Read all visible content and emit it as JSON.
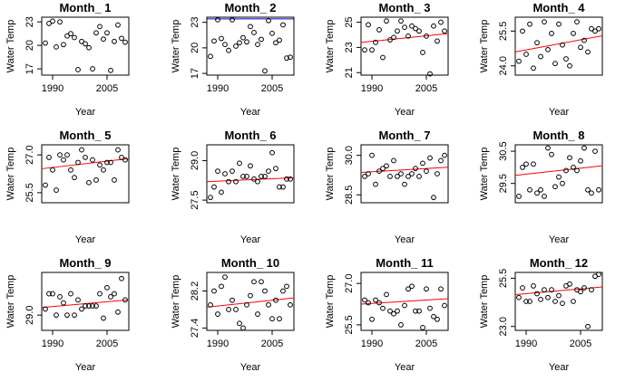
{
  "colors": {
    "points": "#000000",
    "trend": "#ff0000",
    "trend_month_2": "#0000cc",
    "frame": "#000000"
  },
  "chart_data": [
    {
      "type": "scatter",
      "title": "Month_ 1",
      "xlabel": "Year",
      "ylabel": "Water Temp",
      "xlim": [
        1987,
        2011
      ],
      "ylim": [
        16.2,
        23.6
      ],
      "xticks": [
        1990,
        2005
      ],
      "xtick_labels": [
        "1990",
        "2005"
      ],
      "yticks": [
        17,
        20,
        23
      ],
      "ytick_labels": [
        "17",
        "20",
        "23"
      ],
      "x": [
        1988,
        1989,
        1990,
        1991,
        1992,
        1993,
        1994,
        1995,
        1996,
        1997,
        1998,
        1999,
        2000,
        2001,
        2002,
        2003,
        2004,
        2005,
        2006,
        2007,
        2008,
        2009,
        2010
      ],
      "y": [
        20.3,
        22.8,
        23.1,
        19.8,
        23.0,
        20.1,
        21.2,
        21.5,
        21.0,
        16.9,
        20.5,
        20.2,
        19.7,
        17.0,
        21.6,
        22.4,
        20.8,
        21.6,
        16.8,
        20.5,
        22.6,
        20.9,
        20.4
      ],
      "trend": null
    },
    {
      "type": "scatter",
      "title": "Month_ 2",
      "xlabel": "Year",
      "ylabel": "Water Temp",
      "xlim": [
        1987,
        2011
      ],
      "ylim": [
        16.8,
        23.6
      ],
      "xticks": [
        1990,
        2005
      ],
      "xtick_labels": [
        "1990",
        "2005"
      ],
      "yticks": [
        17,
        20,
        23
      ],
      "ytick_labels": [
        "17",
        "20",
        "23"
      ],
      "x": [
        1988,
        1989,
        1990,
        1991,
        1992,
        1993,
        1994,
        1995,
        1996,
        1997,
        1998,
        1999,
        2000,
        2001,
        2002,
        2003,
        2004,
        2005,
        2006,
        2007,
        2008,
        2009,
        2010
      ],
      "y": [
        19.0,
        20.8,
        23.3,
        21.1,
        20.4,
        19.7,
        23.3,
        20.2,
        20.6,
        21.2,
        20.7,
        22.5,
        21.8,
        20.4,
        21.0,
        17.3,
        23.2,
        21.7,
        20.6,
        20.9,
        22.7,
        18.8,
        18.9
      ],
      "trend": [
        23.4,
        23.4
      ]
    },
    {
      "type": "scatter",
      "title": "Month_ 3",
      "xlabel": "Year",
      "ylabel": "Water Temp",
      "xlim": [
        1987,
        2011
      ],
      "ylim": [
        20.8,
        25.4
      ],
      "xticks": [
        1990,
        2005
      ],
      "xtick_labels": [
        "1990",
        "2005"
      ],
      "yticks": [
        21,
        23,
        25
      ],
      "ytick_labels": [
        "21",
        "23",
        "25"
      ],
      "x": [
        1988,
        1989,
        1990,
        1991,
        1992,
        1993,
        1994,
        1995,
        1996,
        1997,
        1998,
        1999,
        2000,
        2001,
        2002,
        2003,
        2004,
        2005,
        2006,
        2007,
        2008,
        2009,
        2010
      ],
      "y": [
        22.8,
        24.8,
        22.8,
        23.4,
        24.4,
        22.2,
        25.1,
        23.6,
        23.8,
        24.3,
        25.1,
        24.6,
        23.9,
        24.7,
        24.5,
        24.3,
        22.6,
        23.9,
        20.9,
        24.7,
        23.5,
        25.0,
        24.3
      ],
      "trend": [
        23.4,
        24.1
      ]
    },
    {
      "type": "scatter",
      "title": "Month_ 4",
      "xlabel": "Year",
      "ylabel": "Water Temp",
      "xlim": [
        1987,
        2011
      ],
      "ylim": [
        23.6,
        26.1
      ],
      "xticks": [],
      "xtick_labels": [],
      "yticks": [
        24.0,
        25.5
      ],
      "ytick_labels": [
        "24.0",
        "25.5"
      ],
      "x": [
        1988,
        1989,
        1990,
        1991,
        1992,
        1993,
        1994,
        1995,
        1996,
        1997,
        1998,
        1999,
        2000,
        2001,
        2002,
        2003,
        2004,
        2005,
        2006,
        2007,
        2008,
        2009,
        2010
      ],
      "y": [
        24.2,
        25.5,
        24.5,
        25.8,
        23.9,
        25.0,
        24.4,
        25.9,
        24.7,
        25.4,
        24.1,
        25.8,
        24.9,
        24.3,
        24.0,
        25.4,
        25.9,
        24.8,
        25.1,
        24.6,
        25.6,
        25.5,
        25.6
      ],
      "trend": [
        24.6,
        25.3
      ]
    },
    {
      "type": "scatter",
      "title": "Month_ 5",
      "xlabel": "Year",
      "ylabel": "Water Temp",
      "xlim": [
        1987,
        2011
      ],
      "ylim": [
        25.1,
        27.4
      ],
      "xticks": [],
      "xtick_labels": [],
      "yticks": [
        25.5,
        27.0
      ],
      "ytick_labels": [
        "25.5",
        "27.0"
      ],
      "x": [
        1988,
        1989,
        1990,
        1991,
        1992,
        1993,
        1994,
        1995,
        1996,
        1997,
        1998,
        1999,
        2000,
        2001,
        2002,
        2003,
        2004,
        2005,
        2006,
        2007,
        2008,
        2009,
        2010
      ],
      "y": [
        25.8,
        26.9,
        26.4,
        25.6,
        27.0,
        26.8,
        27.0,
        26.4,
        26.1,
        26.7,
        27.2,
        26.9,
        25.9,
        26.8,
        26.0,
        26.6,
        26.4,
        26.7,
        26.7,
        26.0,
        27.2,
        26.9,
        26.8
      ],
      "trend": [
        26.45,
        26.85
      ]
    },
    {
      "type": "scatter",
      "title": "Month_ 6",
      "xlabel": "Year",
      "ylabel": "Water Temp",
      "xlim": [
        1987,
        2011
      ],
      "ylim": [
        27.4,
        29.6
      ],
      "xticks": [],
      "xtick_labels": [],
      "yticks": [
        27.5,
        29.0
      ],
      "ytick_labels": [
        "27.5",
        "29.0"
      ],
      "x": [
        1988,
        1989,
        1990,
        1991,
        1992,
        1993,
        1994,
        1995,
        1996,
        1997,
        1998,
        1999,
        2000,
        2001,
        2002,
        2003,
        2004,
        2005,
        2006,
        2007,
        2008,
        2009,
        2010
      ],
      "y": [
        27.6,
        28.0,
        28.6,
        27.8,
        28.5,
        28.2,
        28.6,
        28.2,
        28.9,
        28.4,
        28.4,
        28.8,
        28.3,
        28.2,
        28.4,
        28.4,
        28.6,
        29.3,
        28.7,
        28.0,
        28.0,
        28.3,
        28.3
      ],
      "trend": [
        28.2,
        28.35
      ]
    },
    {
      "type": "scatter",
      "title": "Month_ 7",
      "xlabel": "Year",
      "ylabel": "Water Temp",
      "xlim": [
        1987,
        2011
      ],
      "ylim": [
        28.2,
        30.4
      ],
      "xticks": [],
      "xtick_labels": [],
      "yticks": [
        28.5,
        30.0
      ],
      "ytick_labels": [
        "28.5",
        "30.0"
      ],
      "x": [
        1988,
        1989,
        1990,
        1991,
        1992,
        1993,
        1994,
        1995,
        1996,
        1997,
        1998,
        1999,
        2000,
        2001,
        2002,
        2003,
        2004,
        2005,
        2006,
        2007,
        2008,
        2009,
        2010
      ],
      "y": [
        29.2,
        29.3,
        30.0,
        28.9,
        29.4,
        29.5,
        29.6,
        29.2,
        29.8,
        29.2,
        29.3,
        28.9,
        29.2,
        29.3,
        29.5,
        29.2,
        29.7,
        29.4,
        29.9,
        28.4,
        29.3,
        29.8,
        30.0
      ],
      "trend": [
        29.35,
        29.55
      ]
    },
    {
      "type": "scatter",
      "title": "Month_ 8",
      "xlabel": "Year",
      "ylabel": "Water Temp",
      "xlim": [
        1987,
        2011
      ],
      "ylim": [
        28.9,
        30.7
      ],
      "xticks": [],
      "xtick_labels": [],
      "yticks": [
        29.5,
        30.5
      ],
      "ytick_labels": [
        "29.5",
        "30.5"
      ],
      "x": [
        1988,
        1989,
        1990,
        1991,
        1992,
        1993,
        1994,
        1995,
        1996,
        1997,
        1998,
        1999,
        2000,
        2001,
        2002,
        2003,
        2004,
        2005,
        2006,
        2007,
        2008,
        2009,
        2010
      ],
      "y": [
        29.1,
        30.0,
        30.1,
        29.3,
        30.1,
        29.2,
        29.3,
        29.1,
        30.6,
        30.4,
        29.4,
        29.7,
        29.5,
        29.9,
        30.3,
        30.0,
        29.9,
        30.2,
        30.6,
        29.3,
        29.2,
        30.5,
        29.3
      ],
      "trend": [
        29.75,
        30.05
      ]
    },
    {
      "type": "scatter",
      "title": "Month_ 9",
      "xlabel": "Year",
      "ylabel": "Water Temp",
      "xlim": [
        1987,
        2011
      ],
      "ylim": [
        28.5,
        30.4
      ],
      "xticks": [
        1990,
        2005
      ],
      "xtick_labels": [
        "1990",
        "2005"
      ],
      "yticks": [
        29.0
      ],
      "ytick_labels": [
        "29.0"
      ],
      "x": [
        1988,
        1989,
        1990,
        1991,
        1992,
        1993,
        1994,
        1995,
        1996,
        1997,
        1998,
        1999,
        2000,
        2001,
        2002,
        2003,
        2004,
        2005,
        2006,
        2007,
        2008,
        2009,
        2010
      ],
      "y": [
        29.2,
        29.7,
        29.7,
        29.0,
        29.6,
        29.4,
        29.0,
        29.7,
        29.0,
        29.5,
        29.2,
        29.3,
        29.3,
        29.3,
        29.3,
        29.7,
        28.9,
        29.9,
        29.6,
        29.7,
        29.1,
        30.2,
        29.5
      ],
      "trend": [
        29.25,
        29.5
      ]
    },
    {
      "type": "scatter",
      "title": "Month_ 10",
      "xlabel": "Year",
      "ylabel": "Water Temp",
      "xlim": [
        1987,
        2011
      ],
      "ylim": [
        27.35,
        28.6
      ],
      "xticks": [
        1990,
        2005
      ],
      "xtick_labels": [
        "1990",
        "2005"
      ],
      "yticks": [
        27.4,
        28.2
      ],
      "ytick_labels": [
        "27.4",
        "28.2"
      ],
      "x": [
        1988,
        1989,
        1990,
        1991,
        1992,
        1993,
        1994,
        1995,
        1996,
        1997,
        1998,
        1999,
        2000,
        2001,
        2002,
        2003,
        2004,
        2005,
        2006,
        2007,
        2008,
        2009,
        2010
      ],
      "y": [
        27.9,
        28.2,
        27.7,
        28.3,
        28.5,
        27.8,
        28.0,
        27.8,
        27.5,
        27.4,
        27.9,
        28.1,
        28.4,
        27.7,
        28.4,
        28.2,
        27.9,
        27.6,
        28.0,
        27.6,
        28.2,
        28.3,
        27.9
      ],
      "trend": [
        27.85,
        28.05
      ]
    },
    {
      "type": "scatter",
      "title": "Month_ 11",
      "xlabel": "Year",
      "ylabel": "Water Temp",
      "xlim": [
        1987,
        2011
      ],
      "ylim": [
        25.3,
        27.4
      ],
      "xticks": [
        1990,
        2005
      ],
      "xtick_labels": [
        "1990",
        "2005"
      ],
      "yticks": [
        25.5,
        27.0
      ],
      "ytick_labels": [
        "25.5",
        "27.0"
      ],
      "x": [
        1988,
        1989,
        1990,
        1991,
        1992,
        1993,
        1994,
        1995,
        1996,
        1997,
        1998,
        1999,
        2000,
        2001,
        2002,
        2003,
        2004,
        2005,
        2006,
        2007,
        2008,
        2009,
        2010
      ],
      "y": [
        26.4,
        26.3,
        25.7,
        26.4,
        26.3,
        26.1,
        26.6,
        26.0,
        25.9,
        26.0,
        25.5,
        26.2,
        26.8,
        26.9,
        26.0,
        26.0,
        25.4,
        26.8,
        26.1,
        25.8,
        25.7,
        26.8,
        26.2
      ],
      "trend": [
        26.25,
        26.45
      ]
    },
    {
      "type": "scatter",
      "title": "Month_ 12",
      "xlabel": "Year",
      "ylabel": "Water Temp",
      "xlim": [
        1987,
        2011
      ],
      "ylim": [
        22.8,
        25.8
      ],
      "xticks": [
        1990,
        2005
      ],
      "xtick_labels": [
        "1990",
        "2005"
      ],
      "yticks": [
        23.0,
        25.5
      ],
      "ytick_labels": [
        "23.0",
        "25.5"
      ],
      "x": [
        1988,
        1989,
        1990,
        1991,
        1992,
        1993,
        1994,
        1995,
        1996,
        1997,
        1998,
        1999,
        2000,
        2001,
        2002,
        2003,
        2004,
        2005,
        2006,
        2007,
        2008,
        2009,
        2010
      ],
      "y": [
        24.5,
        25.0,
        24.3,
        24.3,
        25.1,
        24.7,
        24.4,
        24.9,
        24.5,
        24.9,
        24.3,
        24.6,
        24.2,
        25.1,
        25.2,
        24.3,
        24.9,
        24.8,
        25.0,
        23.0,
        24.9,
        25.6,
        25.7
      ],
      "trend": [
        24.65,
        25.05
      ]
    }
  ]
}
